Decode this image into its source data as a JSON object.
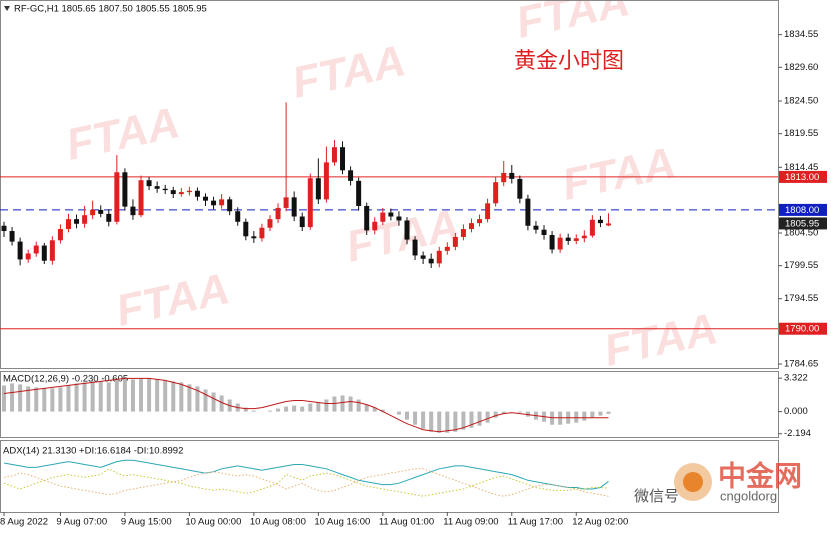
{
  "chart_data": [
    {
      "type": "candlestick",
      "header": "RF-GC,H1  1805.65 1807.50 1805.55 1805.95",
      "title": "黄金小时图",
      "title_color": "#e02020",
      "up_color": "#e02020",
      "down_color": "#111111",
      "categories": [
        "8 Aug 2022",
        null,
        null,
        null,
        null,
        null,
        null,
        "9 Aug 07:00",
        null,
        null,
        null,
        null,
        null,
        null,
        null,
        "9 Aug 15:00",
        null,
        null,
        null,
        null,
        null,
        null,
        null,
        "10 Aug 00:00",
        null,
        null,
        null,
        null,
        null,
        null,
        null,
        "10 Aug 08:00",
        null,
        null,
        null,
        null,
        null,
        null,
        null,
        "10 Aug 16:00",
        null,
        null,
        null,
        null,
        null,
        null,
        null,
        "11 Aug 01:00",
        null,
        null,
        null,
        null,
        null,
        null,
        null,
        "11 Aug 09:00",
        null,
        null,
        null,
        null,
        null,
        null,
        null,
        "11 Aug 17:00",
        null,
        null,
        null,
        null,
        null,
        null,
        null,
        "12 Aug 02:00",
        null,
        null,
        null,
        null
      ],
      "open": [
        1805.6,
        1804.8,
        1803.2,
        1800.5,
        1801.4,
        1802.6,
        1800.3,
        1803.4,
        1805.1,
        1806.6,
        1805.9,
        1807.2,
        1808.0,
        1807.4,
        1806.2,
        1813.7,
        1808.5,
        1807.2,
        1812.5,
        1811.6,
        1811.2,
        1811.0,
        1810.4,
        1810.7,
        1810.9,
        1810.0,
        1809.4,
        1808.7,
        1809.6,
        1807.8,
        1806.2,
        1804.0,
        1803.7,
        1805.3,
        1806.6,
        1808.3,
        1809.9,
        1807.0,
        1805.4,
        1812.8,
        1809.6,
        1815.2,
        1817.5,
        1814.0,
        1812.4,
        1808.6,
        1804.9,
        1806.2,
        1807.6,
        1807.0,
        1806.4,
        1803.5,
        1801.1,
        1800.6,
        1799.9,
        1801.8,
        1802.4,
        1803.9,
        1805.1,
        1806.0,
        1806.6,
        1809.0,
        1812.2,
        1813.6,
        1812.7,
        1809.7,
        1805.6,
        1805.0,
        1804.2,
        1802.0,
        1803.8,
        1803.3,
        1803.7,
        1804.1,
        1806.5,
        1805.65
      ],
      "high": [
        1806.2,
        1805.4,
        1803.8,
        1802.0,
        1803.2,
        1803.0,
        1804.0,
        1805.8,
        1807.4,
        1807.3,
        1808.6,
        1809.4,
        1808.7,
        1808.1,
        1816.3,
        1814.3,
        1809.6,
        1813.2,
        1813.0,
        1812.3,
        1811.8,
        1811.5,
        1811.3,
        1811.5,
        1811.4,
        1810.5,
        1810.0,
        1810.4,
        1810.0,
        1808.4,
        1806.7,
        1804.8,
        1805.9,
        1807.2,
        1809.0,
        1824.3,
        1810.8,
        1807.6,
        1813.5,
        1815.8,
        1817.6,
        1818.6,
        1818.4,
        1814.6,
        1812.9,
        1809.1,
        1806.9,
        1808.3,
        1808.2,
        1807.8,
        1806.9,
        1804.0,
        1801.7,
        1801.4,
        1802.4,
        1803.1,
        1804.5,
        1805.8,
        1806.7,
        1807.3,
        1809.7,
        1813.0,
        1815.4,
        1814.8,
        1813.2,
        1810.3,
        1806.3,
        1805.7,
        1804.8,
        1804.4,
        1804.4,
        1804.3,
        1804.9,
        1807.2,
        1807.1,
        1807.5
      ],
      "low": [
        1803.9,
        1802.6,
        1799.6,
        1800.0,
        1800.9,
        1799.8,
        1799.7,
        1802.9,
        1804.6,
        1805.2,
        1805.3,
        1806.6,
        1806.9,
        1805.5,
        1805.8,
        1807.9,
        1806.5,
        1806.9,
        1811.0,
        1810.6,
        1810.4,
        1809.8,
        1810.0,
        1810.2,
        1809.4,
        1808.6,
        1808.1,
        1808.2,
        1807.2,
        1805.6,
        1803.4,
        1803.0,
        1803.2,
        1804.8,
        1806.0,
        1807.8,
        1806.3,
        1804.8,
        1805.0,
        1808.9,
        1809.1,
        1814.7,
        1813.4,
        1811.7,
        1807.9,
        1804.2,
        1804.3,
        1805.7,
        1806.4,
        1805.6,
        1802.8,
        1800.4,
        1799.8,
        1799.2,
        1799.3,
        1801.2,
        1801.9,
        1803.4,
        1804.6,
        1805.5,
        1806.1,
        1808.5,
        1811.6,
        1812.0,
        1809.0,
        1804.9,
        1804.4,
        1803.5,
        1801.4,
        1801.5,
        1802.7,
        1802.8,
        1803.1,
        1803.8,
        1805.4,
        1805.55
      ],
      "close": [
        1804.8,
        1803.2,
        1800.5,
        1801.4,
        1802.6,
        1800.3,
        1803.4,
        1805.1,
        1806.6,
        1805.9,
        1807.2,
        1808.0,
        1807.4,
        1806.2,
        1813.7,
        1808.5,
        1807.2,
        1812.5,
        1811.6,
        1811.2,
        1811.0,
        1810.4,
        1810.7,
        1810.9,
        1810.0,
        1809.4,
        1808.7,
        1809.6,
        1807.8,
        1806.2,
        1804.0,
        1803.7,
        1805.3,
        1806.6,
        1808.3,
        1809.9,
        1807.0,
        1805.4,
        1812.8,
        1809.6,
        1815.2,
        1817.5,
        1814.0,
        1812.4,
        1808.6,
        1804.9,
        1806.2,
        1807.6,
        1807.0,
        1806.4,
        1803.5,
        1801.1,
        1800.6,
        1799.9,
        1801.8,
        1802.4,
        1803.9,
        1805.1,
        1806.0,
        1806.6,
        1809.0,
        1812.2,
        1813.6,
        1812.7,
        1809.7,
        1805.6,
        1805.0,
        1804.2,
        1802.0,
        1803.8,
        1803.3,
        1803.7,
        1804.1,
        1806.5,
        1806.0,
        1805.95
      ],
      "ylim": [
        1784.05,
        1839.8
      ],
      "yticks": [
        1834.55,
        {
          "value": 1829.6,
          "label": "1829.60"
        },
        {
          "value": 1824.5,
          "label": "1824.50"
        },
        1819.55,
        1814.45,
        {
          "value": 1804.5,
          "label": "1804.50"
        },
        1799.55,
        1794.55,
        1784.65
      ],
      "levels": [
        {
          "value": 1813,
          "label": "1813.00",
          "color": "#e02020",
          "style": "solid"
        },
        {
          "value": 1808,
          "label": "1808.00",
          "color": "#1020c0",
          "style": "dashed"
        },
        {
          "value": 1790,
          "label": "1790.00",
          "color": "#e02020",
          "style": "solid"
        }
      ],
      "price_label": {
        "value": 1805.95,
        "label": "1805.95",
        "color": "#222222"
      }
    },
    {
      "type": "macd",
      "title": "MACD(12,26,9) -0.230 -0.605",
      "histogram": {
        "color": "#b8b8b8",
        "values": [
          2.6,
          2.8,
          2.7,
          2.5,
          2.4,
          2.3,
          2.3,
          2.4,
          2.6,
          2.8,
          2.9,
          3.0,
          3.0,
          2.9,
          3.2,
          3.3,
          3.2,
          3.3,
          3.3,
          3.2,
          3.1,
          3.0,
          2.9,
          2.7,
          2.5,
          2.2,
          1.9,
          1.6,
          1.2,
          0.8,
          0.4,
          0.1,
          0.0,
          0.1,
          0.3,
          0.5,
          0.6,
          0.5,
          0.8,
          0.9,
          1.2,
          1.5,
          1.6,
          1.5,
          1.2,
          0.7,
          0.4,
          0.2,
          0.0,
          -0.3,
          -0.8,
          -1.3,
          -1.7,
          -2.0,
          -2.1,
          -2.1,
          -2.0,
          -1.8,
          -1.6,
          -1.4,
          -1.1,
          -0.6,
          -0.2,
          0.0,
          -0.1,
          -0.5,
          -0.8,
          -1.0,
          -1.3,
          -1.3,
          -1.2,
          -1.1,
          -0.9,
          -0.6,
          -0.4,
          -0.23
        ]
      },
      "signal": {
        "color": "#c01818",
        "values": [
          1.8,
          1.9,
          2.0,
          2.1,
          2.2,
          2.3,
          2.4,
          2.5,
          2.6,
          2.7,
          2.8,
          2.9,
          3.0,
          3.1,
          3.2,
          3.3,
          3.3,
          3.3,
          3.3,
          3.2,
          3.1,
          2.9,
          2.7,
          2.4,
          2.1,
          1.7,
          1.3,
          0.9,
          0.6,
          0.4,
          0.3,
          0.3,
          0.4,
          0.6,
          0.8,
          1.0,
          1.1,
          1.1,
          1.0,
          0.9,
          0.8,
          0.8,
          0.9,
          1.0,
          0.9,
          0.7,
          0.4,
          0.0,
          -0.4,
          -0.8,
          -1.2,
          -1.5,
          -1.8,
          -1.9,
          -2.0,
          -1.9,
          -1.8,
          -1.6,
          -1.3,
          -1.0,
          -0.7,
          -0.4,
          -0.2,
          -0.1,
          -0.2,
          -0.3,
          -0.4,
          -0.5,
          -0.6,
          -0.6,
          -0.6,
          -0.6,
          -0.6,
          -0.6,
          -0.6,
          -0.605
        ]
      },
      "ylim": [
        -2.52,
        4.03
      ],
      "yticks": [
        3.322,
        {
          "value": 0,
          "label": "0.000"
        },
        -2.194
      ]
    },
    {
      "type": "adx",
      "title": "ADX(14) 21.3130 +DI:16.6184 -DI:10.8992",
      "series": [
        {
          "color": "#2aa8b8",
          "style": "solid",
          "values": [
            34,
            33,
            32,
            31,
            31,
            32,
            33,
            34,
            35,
            34,
            33,
            32,
            31,
            33,
            35,
            36,
            36,
            35,
            34,
            33,
            32,
            31,
            30,
            29,
            28,
            27,
            28,
            30,
            31,
            32,
            31,
            30,
            29,
            30,
            31,
            32,
            33,
            33,
            32,
            31,
            30,
            28,
            26,
            24,
            22,
            21,
            20,
            19,
            19,
            20,
            22,
            24,
            26,
            28,
            30,
            31,
            32,
            32,
            31,
            30,
            29,
            28,
            27,
            26,
            24,
            22,
            21,
            20,
            19,
            18,
            17,
            17,
            16,
            16,
            17,
            21.313
          ]
        },
        {
          "color": "#c8c830",
          "style": "dotted",
          "values": [
            20,
            18,
            16,
            18,
            20,
            22,
            24,
            25,
            26,
            25,
            24,
            25,
            26,
            30,
            27,
            25,
            26,
            25,
            24,
            23,
            22,
            21,
            20,
            18,
            17,
            16,
            15,
            16,
            15,
            14,
            13,
            14,
            16,
            18,
            20,
            26,
            24,
            22,
            25,
            26,
            27,
            26,
            24,
            22,
            20,
            18,
            17,
            16,
            15,
            14,
            13,
            12,
            11,
            12,
            13,
            14,
            15,
            16,
            18,
            20,
            22,
            24,
            25,
            23,
            21,
            19,
            17,
            16,
            15,
            15,
            15,
            16,
            16,
            17,
            17,
            16.6184
          ]
        },
        {
          "color": "#e8b070",
          "style": "dotted",
          "values": [
            24,
            25,
            27,
            26,
            24,
            22,
            20,
            18,
            17,
            16,
            15,
            14,
            13,
            12,
            13,
            15,
            16,
            17,
            18,
            19,
            20,
            21,
            22,
            24,
            26,
            27,
            28,
            27,
            26,
            25,
            26,
            25,
            23,
            21,
            19,
            16,
            18,
            20,
            17,
            15,
            14,
            15,
            17,
            19,
            22,
            24,
            25,
            26,
            27,
            28,
            29,
            30,
            30,
            28,
            26,
            24,
            22,
            20,
            18,
            16,
            14,
            12,
            11,
            12,
            14,
            16,
            18,
            19,
            19,
            18,
            17,
            16,
            14,
            13,
            12,
            10.8992
          ]
        }
      ],
      "ylim": [
        0,
        50
      ]
    }
  ],
  "watermark": "FTAA",
  "branding": {
    "logo": "中金网",
    "wechat": "微信号",
    "site": "cngoldorg"
  }
}
